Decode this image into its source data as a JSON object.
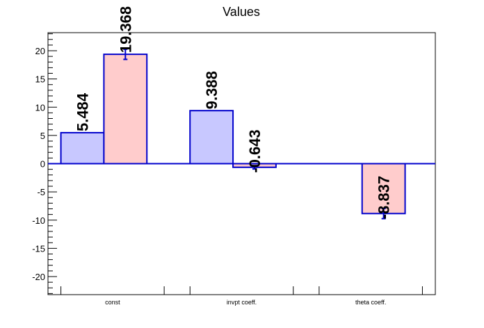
{
  "chart_data": {
    "type": "bar",
    "title": "Values",
    "xlabel": "",
    "ylabel": "",
    "categories": [
      "const",
      "invpt coeff.",
      "theta coeff."
    ],
    "ylim": [
      -23.2,
      23.2
    ],
    "yticks": [
      -20,
      -15,
      -10,
      -5,
      0,
      5,
      10,
      15,
      20
    ],
    "grid": false,
    "legend": "none",
    "series": [
      {
        "color": "#c8c8ff",
        "edge_color": "#0000cc",
        "values": [
          5.484,
          9.388,
          null
        ],
        "errors": [
          0,
          0,
          0
        ],
        "labels": [
          "5.484",
          "9.388",
          ""
        ]
      },
      {
        "color": "#ffcccc",
        "edge_color": "#0000cc",
        "values": [
          19.368,
          -0.643,
          -8.837
        ],
        "errors": [
          0.9,
          0.3,
          0.9
        ],
        "labels": [
          "19.368",
          "-0.643",
          "-8.837"
        ]
      }
    ]
  }
}
